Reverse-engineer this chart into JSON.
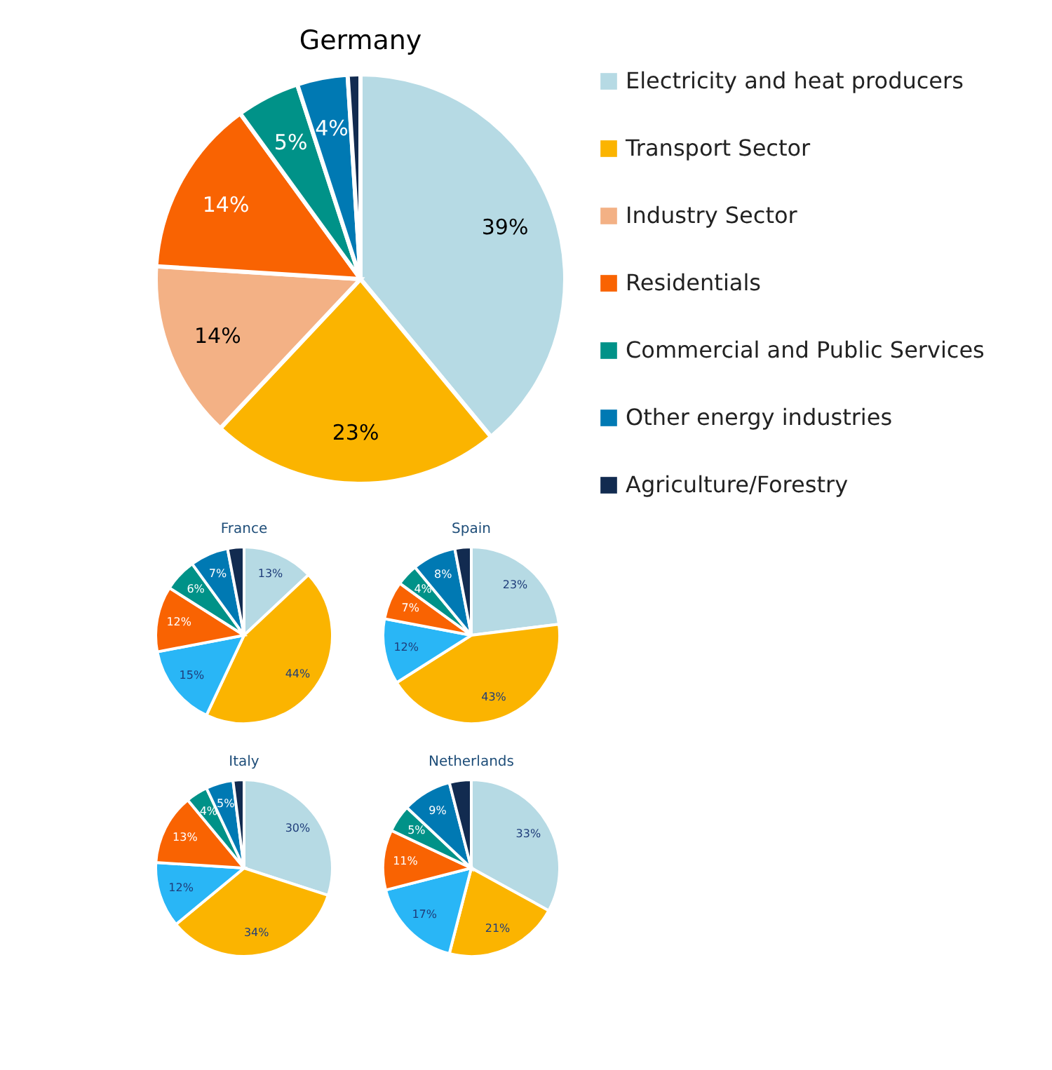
{
  "chart_data": [
    {
      "type": "pie",
      "title": "Germany",
      "legend": "right",
      "categories": [
        "Electricity and heat producers",
        "Transport Sector",
        "Industry Sector",
        "Residentials",
        "Commercial and Public Services",
        "Other energy industries",
        "Agriculture/Forestry"
      ],
      "values": [
        39,
        23,
        14,
        14,
        5,
        4,
        1
      ],
      "colors": [
        "#b6dae4",
        "#fbb400",
        "#f3b185",
        "#f96302",
        "#009288",
        "#0079b3",
        "#122b50"
      ],
      "value_labels": [
        "39%",
        "23%",
        "14%",
        "14%",
        "5%",
        "4%",
        null
      ]
    },
    {
      "type": "pie",
      "title": "France",
      "categories": [
        null,
        null,
        null,
        null,
        null,
        null,
        null
      ],
      "values": [
        13,
        44,
        15,
        12,
        6,
        7,
        3
      ],
      "colors": [
        "#b6dae4",
        "#fbb400",
        "#29b6f6",
        "#f96302",
        "#009288",
        "#0079b3",
        "#122b50"
      ],
      "value_labels": [
        "13%",
        "44%",
        "15%",
        "12%",
        "6%",
        "7%",
        null
      ]
    },
    {
      "type": "pie",
      "title": "Spain",
      "categories": [
        null,
        null,
        null,
        null,
        null,
        null,
        null
      ],
      "values": [
        23,
        43,
        12,
        7,
        4,
        8,
        3
      ],
      "colors": [
        "#b6dae4",
        "#fbb400",
        "#29b6f6",
        "#f96302",
        "#009288",
        "#0079b3",
        "#122b50"
      ],
      "value_labels": [
        "23%",
        "43%",
        "12%",
        "7%",
        "4%",
        "8%",
        null
      ]
    },
    {
      "type": "pie",
      "title": "Italy",
      "categories": [
        null,
        null,
        null,
        null,
        null,
        null,
        null
      ],
      "values": [
        30,
        34,
        12,
        13,
        4,
        5,
        2
      ],
      "colors": [
        "#b6dae4",
        "#fbb400",
        "#29b6f6",
        "#f96302",
        "#009288",
        "#0079b3",
        "#122b50"
      ],
      "value_labels": [
        "30%",
        "34%",
        "12%",
        "13%",
        "4%",
        "5%",
        null
      ]
    },
    {
      "type": "pie",
      "title": "Netherlands",
      "categories": [
        null,
        null,
        null,
        null,
        null,
        null,
        null
      ],
      "values": [
        33,
        21,
        17,
        11,
        5,
        9,
        4
      ],
      "colors": [
        "#b6dae4",
        "#fbb400",
        "#29b6f6",
        "#f96302",
        "#009288",
        "#0079b3",
        "#122b50"
      ],
      "value_labels": [
        "33%",
        "21%",
        "17%",
        "11%",
        "5%",
        "9%",
        null
      ]
    }
  ]
}
